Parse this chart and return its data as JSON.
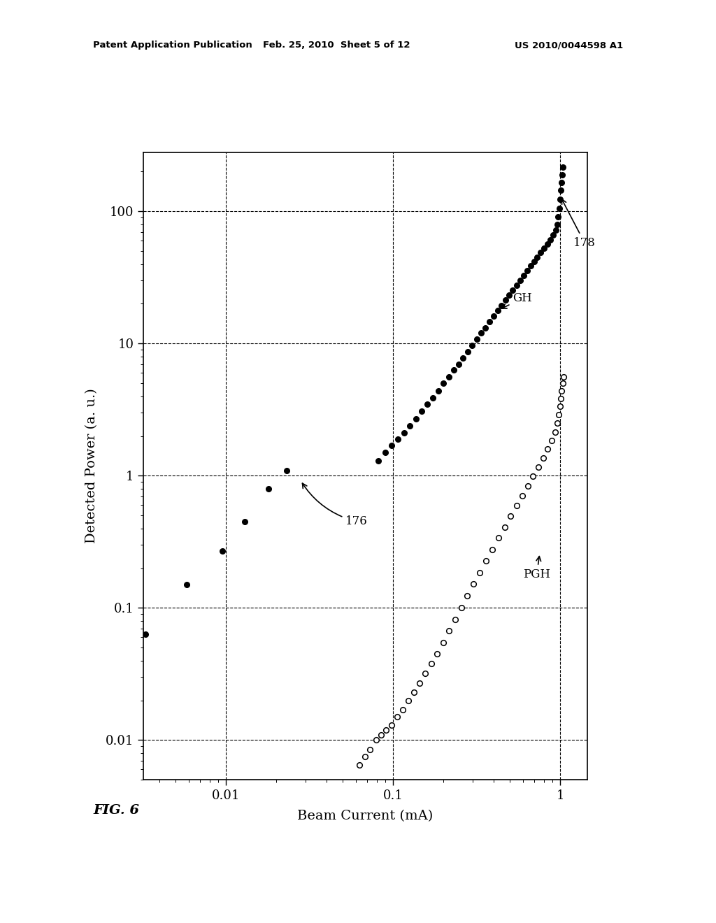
{
  "title_header_left": "Patent Application Publication",
  "title_header_mid": "Feb. 25, 2010  Sheet 5 of 12",
  "title_header_right": "US 2010/0044598 A1",
  "xlabel": "Beam Current (mA)",
  "ylabel": "Detected Power (a. u.)",
  "fig_label": "FIG. 6",
  "xlim": [
    0.0032,
    1.45
  ],
  "ylim": [
    0.005,
    280
  ],
  "annotation_176": "176",
  "annotation_178": "178",
  "annotation_GH": "GH",
  "annotation_PGH": "PGH",
  "GH_x": [
    0.0033,
    0.0058,
    0.0095,
    0.013,
    0.018,
    0.023,
    0.082,
    0.09,
    0.098,
    0.107,
    0.116,
    0.126,
    0.137,
    0.148,
    0.16,
    0.173,
    0.186,
    0.2,
    0.215,
    0.23,
    0.246,
    0.263,
    0.28,
    0.298,
    0.316,
    0.336,
    0.356,
    0.377,
    0.399,
    0.422,
    0.445,
    0.47,
    0.495,
    0.521,
    0.548,
    0.576,
    0.605,
    0.635,
    0.666,
    0.698,
    0.73,
    0.764,
    0.8,
    0.836,
    0.873,
    0.911,
    0.94,
    0.96,
    0.975,
    0.988,
    1.0,
    1.012,
    1.022,
    1.033,
    1.043
  ],
  "GH_y": [
    0.063,
    0.15,
    0.27,
    0.45,
    0.8,
    1.1,
    1.3,
    1.5,
    1.7,
    1.9,
    2.1,
    2.4,
    2.7,
    3.1,
    3.5,
    3.9,
    4.4,
    5.0,
    5.6,
    6.3,
    7.0,
    7.8,
    8.7,
    9.7,
    10.8,
    12.0,
    13.2,
    14.6,
    16.1,
    17.7,
    19.4,
    21.3,
    23.3,
    25.4,
    27.7,
    30.2,
    32.8,
    35.6,
    38.6,
    41.8,
    45.2,
    48.8,
    52.7,
    56.8,
    61.2,
    66.0,
    72,
    80,
    91,
    105,
    123,
    145,
    165,
    190,
    215
  ],
  "PGH_x": [
    0.063,
    0.068,
    0.073,
    0.079,
    0.085,
    0.091,
    0.098,
    0.106,
    0.114,
    0.123,
    0.133,
    0.144,
    0.156,
    0.169,
    0.183,
    0.199,
    0.216,
    0.235,
    0.256,
    0.278,
    0.303,
    0.33,
    0.36,
    0.392,
    0.427,
    0.465,
    0.505,
    0.548,
    0.593,
    0.64,
    0.688,
    0.738,
    0.79,
    0.842,
    0.893,
    0.938,
    0.965,
    0.983,
    0.997,
    1.01,
    1.022,
    1.034,
    1.045
  ],
  "PGH_y": [
    0.0065,
    0.0075,
    0.0085,
    0.01,
    0.011,
    0.012,
    0.013,
    0.015,
    0.017,
    0.02,
    0.023,
    0.027,
    0.032,
    0.038,
    0.045,
    0.055,
    0.067,
    0.082,
    0.1,
    0.123,
    0.152,
    0.186,
    0.228,
    0.278,
    0.338,
    0.41,
    0.495,
    0.595,
    0.71,
    0.84,
    0.99,
    1.16,
    1.36,
    1.59,
    1.85,
    2.15,
    2.5,
    2.9,
    3.35,
    3.85,
    4.4,
    5.0,
    5.6
  ],
  "background_color": "#ffffff",
  "plot_bg_color": "#ffffff"
}
